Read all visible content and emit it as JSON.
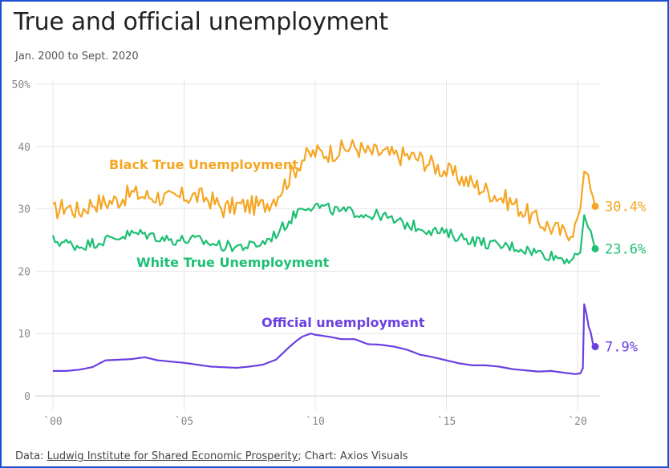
{
  "chart_data": {
    "type": "line",
    "title": "True and official unemployment",
    "subtitle": "Jan. 2000 to Sept. 2020",
    "ylim": [
      0,
      50
    ],
    "xlim": [
      2000,
      2020.67
    ],
    "y_ticks": [
      {
        "value": 0,
        "label": "0"
      },
      {
        "value": 10,
        "label": "10"
      },
      {
        "value": 20,
        "label": "20"
      },
      {
        "value": 30,
        "label": "30"
      },
      {
        "value": 40,
        "label": "40"
      },
      {
        "value": 50,
        "label": "50%"
      }
    ],
    "x_ticks": [
      {
        "value": 2000,
        "label": "`00"
      },
      {
        "value": 2005,
        "label": "`05"
      },
      {
        "value": 2010,
        "label": "`10"
      },
      {
        "value": 2015,
        "label": "`15"
      },
      {
        "value": 2020,
        "label": "`20"
      }
    ],
    "series": [
      {
        "name": "Black True Unemployment",
        "color": "#f5a623",
        "end_value": 30.4,
        "end_label": "30.4%",
        "points": [
          [
            2000,
            29.5
          ],
          [
            2000.5,
            30.5
          ],
          [
            2001,
            29.5
          ],
          [
            2001.5,
            31
          ],
          [
            2002,
            31
          ],
          [
            2002.5,
            31.5
          ],
          [
            2003,
            32.5
          ],
          [
            2003.5,
            32
          ],
          [
            2004,
            32
          ],
          [
            2004.5,
            31.5
          ],
          [
            2005,
            32
          ],
          [
            2005.5,
            32
          ],
          [
            2006,
            31.5
          ],
          [
            2006.5,
            30
          ],
          [
            2007,
            30.5
          ],
          [
            2007.5,
            30.5
          ],
          [
            2008,
            30.5
          ],
          [
            2008.5,
            32
          ],
          [
            2009,
            35
          ],
          [
            2009.5,
            38
          ],
          [
            2010,
            39
          ],
          [
            2010.5,
            39
          ],
          [
            2011,
            39.5
          ],
          [
            2011.5,
            40
          ],
          [
            2012,
            39
          ],
          [
            2012.5,
            39
          ],
          [
            2013,
            38.5
          ],
          [
            2013.5,
            38.5
          ],
          [
            2014,
            38
          ],
          [
            2014.5,
            37
          ],
          [
            2015,
            36
          ],
          [
            2015.5,
            35
          ],
          [
            2016,
            34
          ],
          [
            2016.5,
            33
          ],
          [
            2017,
            32
          ],
          [
            2017.5,
            31
          ],
          [
            2018,
            29.5
          ],
          [
            2018.5,
            28
          ],
          [
            2019,
            27
          ],
          [
            2019.5,
            26
          ],
          [
            2019.9,
            27
          ],
          [
            2020.1,
            30
          ],
          [
            2020.25,
            36
          ],
          [
            2020.4,
            35.5
          ],
          [
            2020.5,
            33
          ],
          [
            2020.58,
            32
          ],
          [
            2020.67,
            30.4
          ]
        ]
      },
      {
        "name": "White True Unemployment",
        "color": "#1dbf73",
        "end_value": 23.6,
        "end_label": "23.6%",
        "points": [
          [
            2000,
            25
          ],
          [
            2000.5,
            24.5
          ],
          [
            2001,
            24
          ],
          [
            2001.5,
            24.5
          ],
          [
            2002,
            25
          ],
          [
            2002.5,
            25.5
          ],
          [
            2003,
            26
          ],
          [
            2003.5,
            26
          ],
          [
            2004,
            25.5
          ],
          [
            2004.5,
            25
          ],
          [
            2005,
            25
          ],
          [
            2005.5,
            25
          ],
          [
            2006,
            24.5
          ],
          [
            2006.5,
            24
          ],
          [
            2007,
            24
          ],
          [
            2007.5,
            24
          ],
          [
            2008,
            24.5
          ],
          [
            2008.5,
            26
          ],
          [
            2009,
            28
          ],
          [
            2009.5,
            30.5
          ],
          [
            2010,
            30.5
          ],
          [
            2010.5,
            30
          ],
          [
            2011,
            29.5
          ],
          [
            2011.5,
            29.5
          ],
          [
            2012,
            29
          ],
          [
            2012.5,
            29
          ],
          [
            2013,
            28
          ],
          [
            2013.5,
            27.5
          ],
          [
            2014,
            27
          ],
          [
            2014.5,
            26.5
          ],
          [
            2015,
            26
          ],
          [
            2015.5,
            25.5
          ],
          [
            2016,
            25
          ],
          [
            2016.5,
            24.5
          ],
          [
            2017,
            24
          ],
          [
            2017.5,
            24
          ],
          [
            2018,
            23.5
          ],
          [
            2018.5,
            23
          ],
          [
            2019,
            22.5
          ],
          [
            2019.5,
            22
          ],
          [
            2019.9,
            22
          ],
          [
            2020.1,
            23
          ],
          [
            2020.25,
            29
          ],
          [
            2020.4,
            27
          ],
          [
            2020.5,
            26.5
          ],
          [
            2020.58,
            25
          ],
          [
            2020.67,
            23.6
          ]
        ]
      },
      {
        "name": "Official unemployment",
        "color": "#6b3fe0",
        "end_value": 7.9,
        "end_label": "7.9%",
        "points": [
          [
            2000,
            4.0
          ],
          [
            2000.5,
            4.0
          ],
          [
            2001,
            4.2
          ],
          [
            2001.5,
            4.6
          ],
          [
            2002,
            5.7
          ],
          [
            2002.5,
            5.8
          ],
          [
            2003,
            5.9
          ],
          [
            2003.5,
            6.2
          ],
          [
            2004,
            5.7
          ],
          [
            2004.5,
            5.5
          ],
          [
            2005,
            5.3
          ],
          [
            2005.5,
            5.0
          ],
          [
            2006,
            4.7
          ],
          [
            2006.5,
            4.6
          ],
          [
            2007,
            4.5
          ],
          [
            2007.5,
            4.7
          ],
          [
            2008,
            5.0
          ],
          [
            2008.5,
            5.8
          ],
          [
            2009,
            7.8
          ],
          [
            2009.25,
            8.7
          ],
          [
            2009.5,
            9.5
          ],
          [
            2009.83,
            10.0
          ],
          [
            2010,
            9.8
          ],
          [
            2010.5,
            9.5
          ],
          [
            2011,
            9.1
          ],
          [
            2011.5,
            9.1
          ],
          [
            2012,
            8.3
          ],
          [
            2012.5,
            8.2
          ],
          [
            2013,
            7.9
          ],
          [
            2013.5,
            7.4
          ],
          [
            2014,
            6.6
          ],
          [
            2014.5,
            6.2
          ],
          [
            2015,
            5.7
          ],
          [
            2015.5,
            5.2
          ],
          [
            2016,
            4.9
          ],
          [
            2016.5,
            4.9
          ],
          [
            2017,
            4.7
          ],
          [
            2017.5,
            4.3
          ],
          [
            2018,
            4.1
          ],
          [
            2018.5,
            3.9
          ],
          [
            2019,
            4.0
          ],
          [
            2019.5,
            3.7
          ],
          [
            2019.9,
            3.5
          ],
          [
            2020.1,
            3.6
          ],
          [
            2020.2,
            4.4
          ],
          [
            2020.25,
            14.7
          ],
          [
            2020.33,
            13.3
          ],
          [
            2020.42,
            11.1
          ],
          [
            2020.5,
            10.2
          ],
          [
            2020.58,
            8.4
          ],
          [
            2020.67,
            7.9
          ]
        ]
      }
    ]
  },
  "footer": {
    "prefix": "Data: ",
    "source": "Ludwig Institute for Shared Economic Prosperity",
    "suffix": "; Chart: Axios Visuals"
  }
}
